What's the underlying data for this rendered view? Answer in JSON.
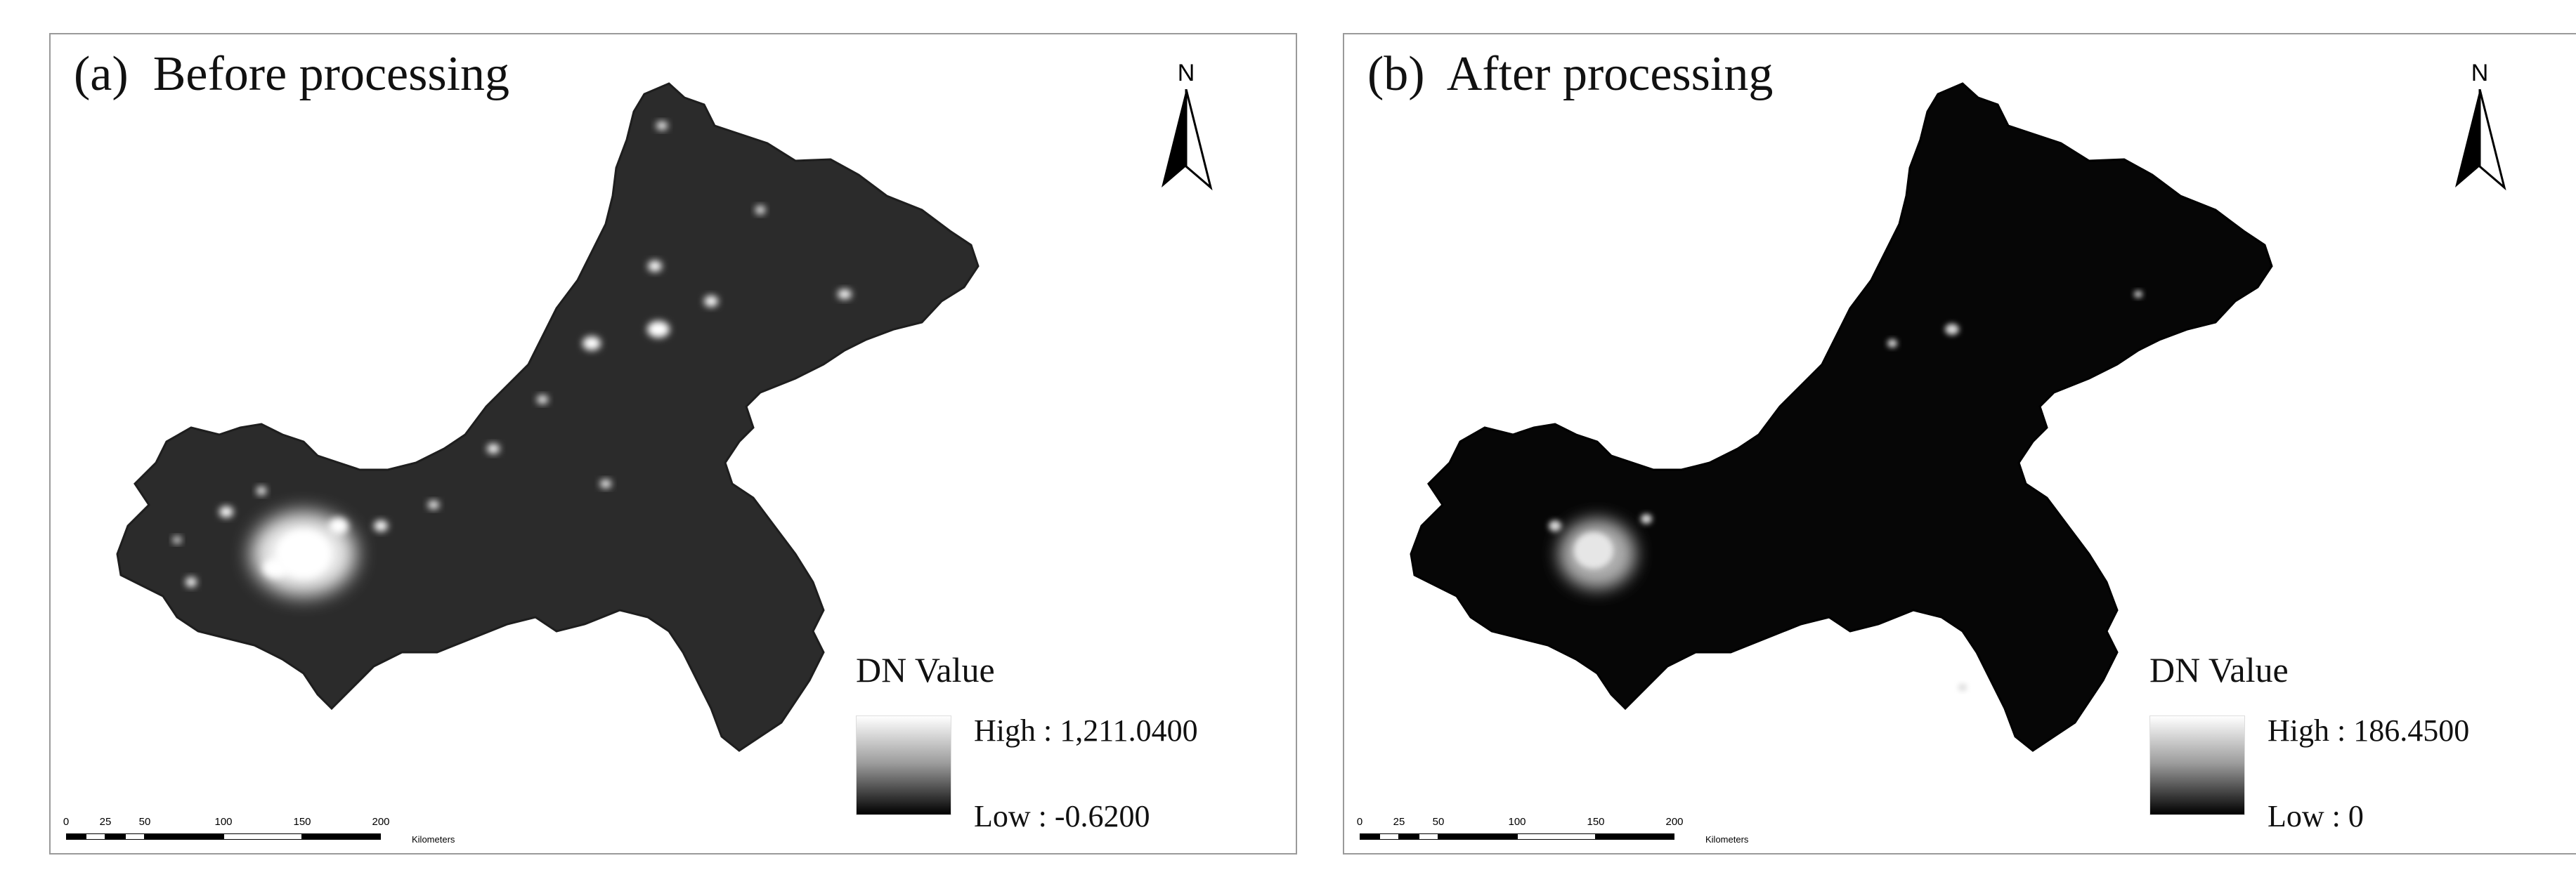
{
  "panels": [
    {
      "id": "a",
      "title": "(a)  Before processing",
      "north_label": "N",
      "legend": {
        "title": "DN Value",
        "high_label": "High : 1,211.0400",
        "low_label": "Low : -0.6200"
      },
      "scalebar": {
        "ticks": [
          "0",
          "25",
          "50",
          "100",
          "150",
          "200"
        ],
        "units": "Kilometers"
      }
    },
    {
      "id": "b",
      "title": "(b)  After processing",
      "north_label": "N",
      "legend": {
        "title": "DN Value",
        "high_label": "High : 186.4500",
        "low_label": "Low : 0"
      },
      "scalebar": {
        "ticks": [
          "0",
          "25",
          "50",
          "100",
          "150",
          "200"
        ],
        "units": "Kilometers"
      }
    }
  ]
}
